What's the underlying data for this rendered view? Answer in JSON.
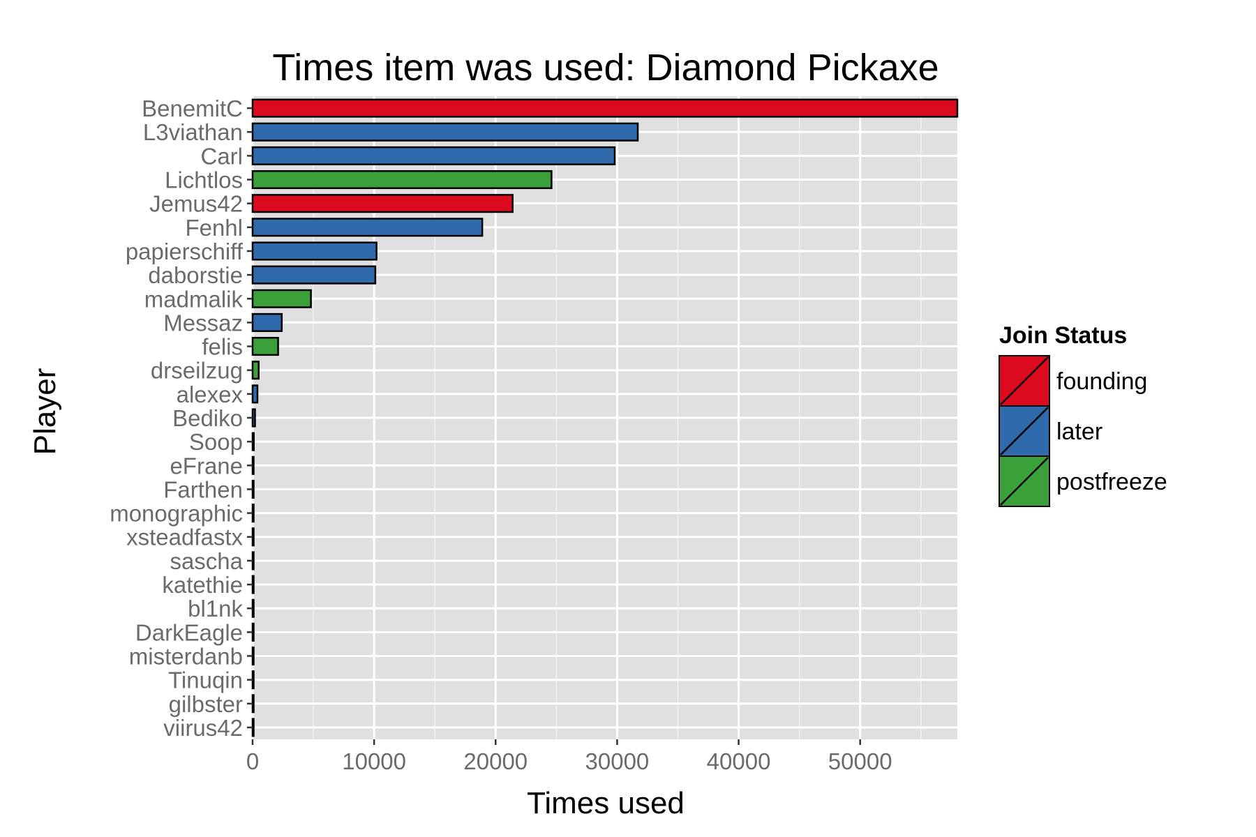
{
  "chart_data": {
    "type": "bar",
    "orientation": "horizontal",
    "title": "Times item was used: Diamond Pickaxe",
    "xlabel": "Times used",
    "ylabel": "Player",
    "xlim": [
      0,
      58000
    ],
    "xticks": [
      0,
      10000,
      20000,
      30000,
      40000,
      50000
    ],
    "xtick_labels": [
      "0",
      "10000",
      "20000",
      "30000",
      "40000",
      "50000"
    ],
    "grid": true,
    "legend_position": "right",
    "legend_title": "Join Status",
    "groups": [
      {
        "name": "founding",
        "color": "#dc0a1e"
      },
      {
        "name": "later",
        "color": "#2f6aad"
      },
      {
        "name": "postfreeze",
        "color": "#3ba03a"
      }
    ],
    "bars": [
      {
        "category": "BenemitC",
        "value": 58000,
        "group": "founding"
      },
      {
        "category": "L3viathan",
        "value": 31700,
        "group": "later"
      },
      {
        "category": "Carl",
        "value": 29800,
        "group": "later"
      },
      {
        "category": "Lichtlos",
        "value": 24600,
        "group": "postfreeze"
      },
      {
        "category": "Jemus42",
        "value": 21400,
        "group": "founding"
      },
      {
        "category": "Fenhl",
        "value": 18900,
        "group": "later"
      },
      {
        "category": "papierschiff",
        "value": 10200,
        "group": "later"
      },
      {
        "category": "daborstie",
        "value": 10100,
        "group": "later"
      },
      {
        "category": "madmalik",
        "value": 4800,
        "group": "postfreeze"
      },
      {
        "category": "Messaz",
        "value": 2400,
        "group": "later"
      },
      {
        "category": "felis",
        "value": 2100,
        "group": "postfreeze"
      },
      {
        "category": "drseilzug",
        "value": 500,
        "group": "postfreeze"
      },
      {
        "category": "alexex",
        "value": 400,
        "group": "later"
      },
      {
        "category": "Bediko",
        "value": 200,
        "group": "later"
      },
      {
        "category": "Soop",
        "value": 100,
        "group": "later"
      },
      {
        "category": "eFrane",
        "value": 80,
        "group": "later"
      },
      {
        "category": "Farthen",
        "value": 70,
        "group": "later"
      },
      {
        "category": "monographic",
        "value": 60,
        "group": "later"
      },
      {
        "category": "xsteadfastx",
        "value": 50,
        "group": "later"
      },
      {
        "category": "sascha",
        "value": 40,
        "group": "later"
      },
      {
        "category": "katethie",
        "value": 30,
        "group": "later"
      },
      {
        "category": "bl1nk",
        "value": 25,
        "group": "later"
      },
      {
        "category": "DarkEagle",
        "value": 20,
        "group": "later"
      },
      {
        "category": "misterdanb",
        "value": 15,
        "group": "later"
      },
      {
        "category": "Tinuqin",
        "value": 10,
        "group": "later"
      },
      {
        "category": "gilbster",
        "value": 8,
        "group": "later"
      },
      {
        "category": "viirus42",
        "value": 5,
        "group": "later"
      }
    ]
  }
}
